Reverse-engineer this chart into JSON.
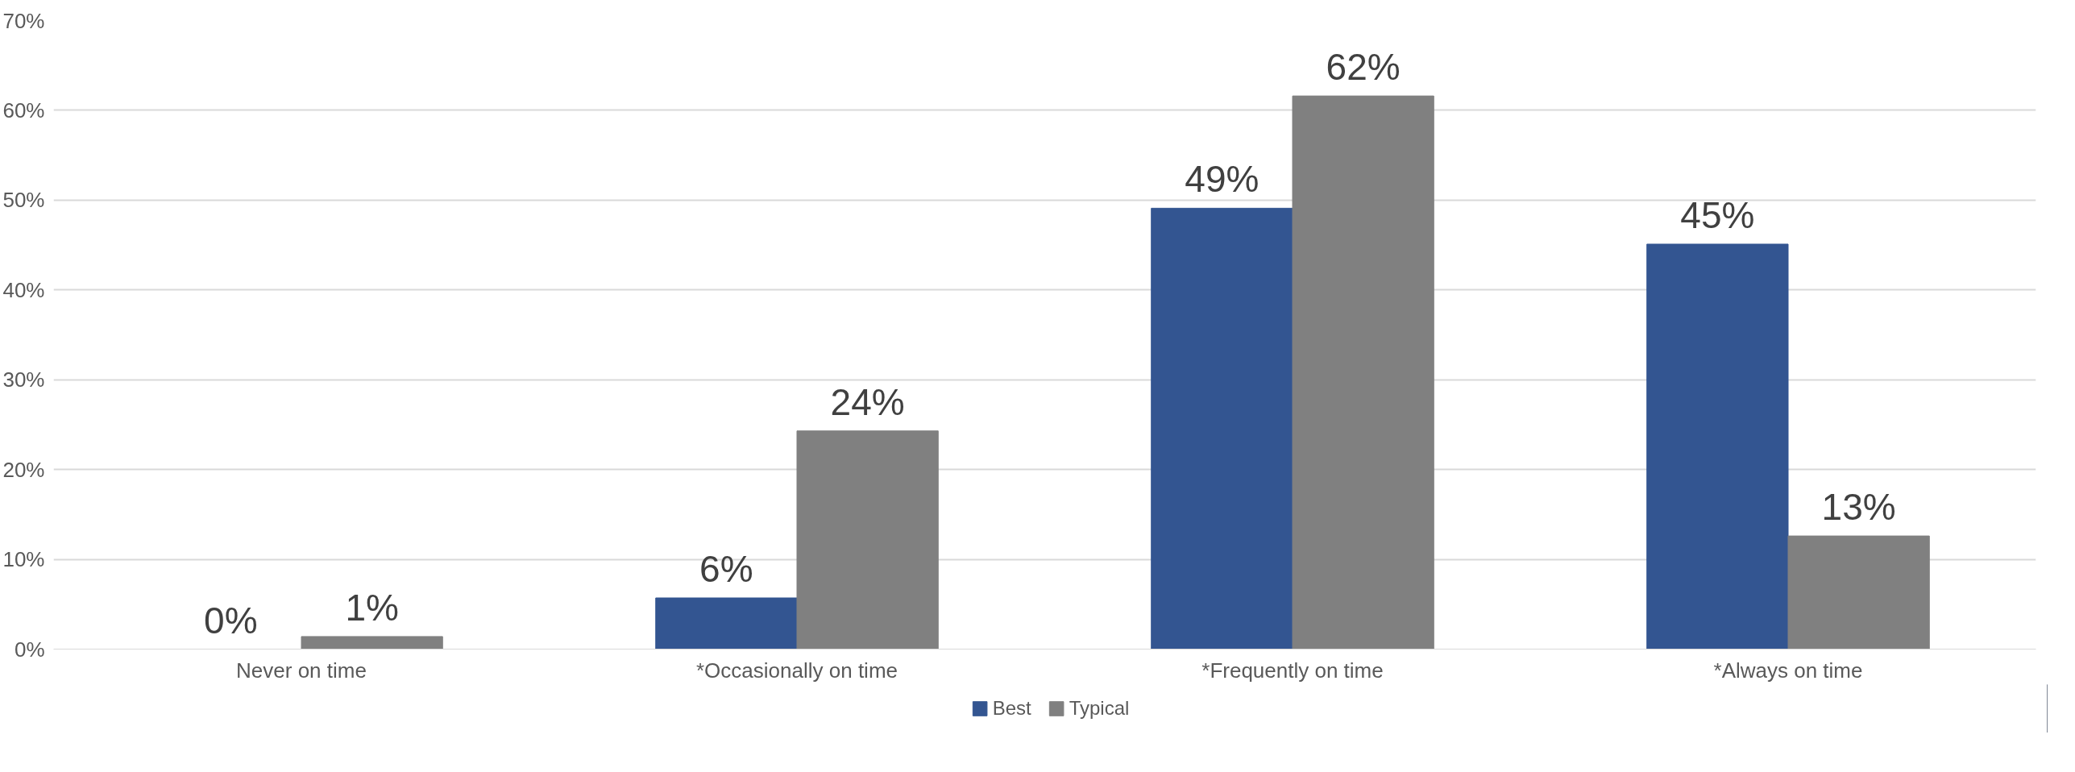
{
  "chart_data": {
    "type": "bar",
    "categories": [
      "Never on time",
      "*Occasionally on time",
      "*Frequently on time",
      "*Always on time"
    ],
    "series": [
      {
        "name": "Best",
        "color": "#335591",
        "values": [
          0,
          5.7,
          49.1,
          45.1
        ],
        "value_labels": [
          "0%",
          "6%",
          "49%",
          "45%"
        ]
      },
      {
        "name": "Typical",
        "color": "#808080",
        "values": [
          1.4,
          24.3,
          61.6,
          12.6
        ],
        "value_labels": [
          "1%",
          "24%",
          "62%",
          "13%"
        ]
      }
    ],
    "ylim": [
      0,
      70
    ],
    "yticks": [
      {
        "value": 0,
        "label": "0%"
      },
      {
        "value": 10,
        "label": "10%"
      },
      {
        "value": 20,
        "label": "20%"
      },
      {
        "value": 30,
        "label": "30%"
      },
      {
        "value": 40,
        "label": "40%"
      },
      {
        "value": 50,
        "label": "50%"
      },
      {
        "value": 60,
        "label": "60%"
      },
      {
        "value": 70,
        "label": "70%"
      }
    ],
    "grid": "y",
    "legend": "bottom"
  }
}
